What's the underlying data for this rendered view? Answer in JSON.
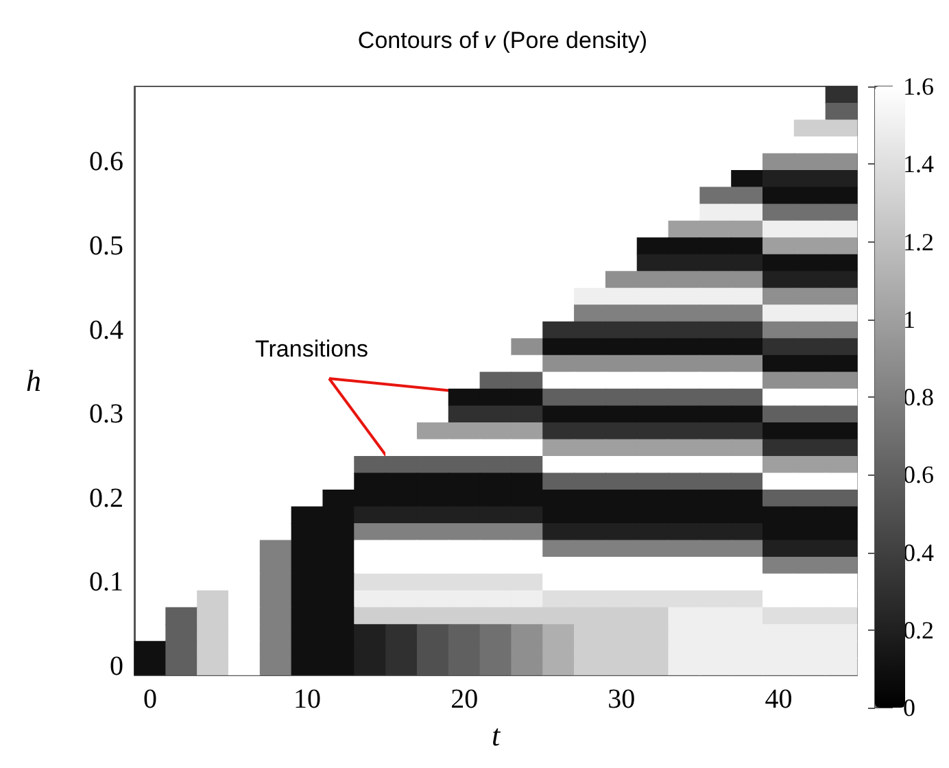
{
  "chart_data": {
    "type": "heatmap",
    "title": "Contours of 𝑣 (Pore density)",
    "xlabel": "t",
    "ylabel": "h",
    "clim": [
      0,
      1.6
    ],
    "cticks": [
      0,
      0.2,
      0.4,
      0.6,
      0.8,
      1,
      1.2,
      1.4,
      1.6
    ],
    "annotations": [
      "Transitions"
    ],
    "categories": [
      "0",
      null,
      null,
      null,
      null,
      "10",
      null,
      null,
      null,
      null,
      "20",
      null,
      null,
      null,
      null,
      "30",
      null,
      null,
      null,
      null,
      "40",
      null,
      null
    ],
    "y_categories": [
      null,
      null,
      null,
      null,
      "0.6",
      null,
      null,
      null,
      null,
      "0.5",
      null,
      null,
      null,
      null,
      "0.4",
      null,
      null,
      null,
      null,
      "0.3",
      null,
      null,
      null,
      null,
      "0.2",
      null,
      null,
      null,
      null,
      "0.1",
      null,
      null,
      null,
      null,
      "0"
    ],
    "cells": [
      [
        null,
        null,
        null,
        null,
        null,
        null,
        null,
        null,
        null,
        null,
        null,
        null,
        null,
        null,
        null,
        null,
        null,
        null,
        null,
        null,
        null,
        null,
        0.3
      ],
      [
        null,
        null,
        null,
        null,
        null,
        null,
        null,
        null,
        null,
        null,
        null,
        null,
        null,
        null,
        null,
        null,
        null,
        null,
        null,
        null,
        null,
        null,
        0.6
      ],
      [
        null,
        null,
        null,
        null,
        null,
        null,
        null,
        null,
        null,
        null,
        null,
        null,
        null,
        null,
        null,
        null,
        null,
        null,
        null,
        null,
        null,
        1.3,
        1.3
      ],
      [
        null,
        null,
        null,
        null,
        null,
        null,
        null,
        null,
        null,
        null,
        null,
        null,
        null,
        null,
        null,
        null,
        null,
        null,
        null,
        null,
        1.6,
        1.6,
        1.6
      ],
      [
        null,
        null,
        null,
        null,
        null,
        null,
        null,
        null,
        null,
        null,
        null,
        null,
        null,
        null,
        null,
        null,
        null,
        null,
        null,
        null,
        0.9,
        0.9,
        0.9
      ],
      [
        null,
        null,
        null,
        null,
        null,
        null,
        null,
        null,
        null,
        null,
        null,
        null,
        null,
        null,
        null,
        null,
        null,
        null,
        null,
        0.1,
        0.2,
        0.2,
        0.2
      ],
      [
        null,
        null,
        null,
        null,
        null,
        null,
        null,
        null,
        null,
        null,
        null,
        null,
        null,
        null,
        null,
        null,
        null,
        null,
        0.7,
        0.7,
        0.1,
        0.1,
        0.1
      ],
      [
        null,
        null,
        null,
        null,
        null,
        null,
        null,
        null,
        null,
        null,
        null,
        null,
        null,
        null,
        null,
        null,
        null,
        null,
        1.5,
        1.5,
        0.7,
        0.7,
        0.7
      ],
      [
        null,
        null,
        null,
        null,
        null,
        null,
        null,
        null,
        null,
        null,
        null,
        null,
        null,
        null,
        null,
        null,
        null,
        1.0,
        1.0,
        1.0,
        1.5,
        1.5,
        1.5
      ],
      [
        null,
        null,
        null,
        null,
        null,
        null,
        null,
        null,
        null,
        null,
        null,
        null,
        null,
        null,
        null,
        null,
        0.1,
        0.1,
        0.1,
        0.1,
        1.0,
        1.0,
        1.0
      ],
      [
        null,
        null,
        null,
        null,
        null,
        null,
        null,
        null,
        null,
        null,
        null,
        null,
        null,
        null,
        null,
        null,
        0.2,
        0.2,
        0.2,
        0.2,
        0.1,
        0.1,
        0.1
      ],
      [
        null,
        null,
        null,
        null,
        null,
        null,
        null,
        null,
        null,
        null,
        null,
        null,
        null,
        null,
        null,
        0.9,
        0.9,
        0.9,
        0.9,
        0.9,
        0.2,
        0.2,
        0.2
      ],
      [
        null,
        null,
        null,
        null,
        null,
        null,
        null,
        null,
        null,
        null,
        null,
        null,
        null,
        null,
        1.5,
        1.5,
        1.5,
        1.5,
        1.5,
        1.5,
        0.9,
        0.9,
        0.9
      ],
      [
        null,
        null,
        null,
        null,
        null,
        null,
        null,
        null,
        null,
        null,
        null,
        null,
        null,
        null,
        0.8,
        0.8,
        0.8,
        0.8,
        0.8,
        0.8,
        1.5,
        1.5,
        1.5
      ],
      [
        null,
        null,
        null,
        null,
        null,
        null,
        null,
        null,
        null,
        null,
        null,
        null,
        null,
        0.3,
        0.3,
        0.3,
        0.3,
        0.3,
        0.3,
        0.3,
        0.8,
        0.8,
        0.8
      ],
      [
        null,
        null,
        null,
        null,
        null,
        null,
        null,
        null,
        null,
        null,
        null,
        null,
        0.9,
        0.1,
        0.1,
        0.1,
        0.1,
        0.1,
        0.1,
        0.1,
        0.3,
        0.3,
        0.3
      ],
      [
        null,
        null,
        null,
        null,
        null,
        null,
        null,
        null,
        null,
        null,
        null,
        null,
        1.6,
        0.9,
        0.9,
        0.9,
        0.9,
        0.9,
        0.9,
        0.9,
        0.1,
        0.1,
        0.1
      ],
      [
        null,
        null,
        null,
        null,
        null,
        null,
        null,
        null,
        null,
        null,
        null,
        0.6,
        0.6,
        1.6,
        1.6,
        1.6,
        1.6,
        1.6,
        1.6,
        1.6,
        0.9,
        0.9,
        0.9
      ],
      [
        null,
        null,
        null,
        null,
        null,
        null,
        null,
        null,
        null,
        null,
        0.1,
        0.1,
        0.1,
        0.6,
        0.6,
        0.6,
        0.6,
        0.6,
        0.6,
        0.6,
        1.6,
        1.6,
        1.6
      ],
      [
        null,
        null,
        null,
        null,
        null,
        null,
        null,
        null,
        null,
        null,
        0.3,
        0.3,
        0.3,
        0.1,
        0.1,
        0.1,
        0.1,
        0.1,
        0.1,
        0.1,
        0.6,
        0.6,
        0.6
      ],
      [
        null,
        null,
        null,
        null,
        null,
        null,
        null,
        null,
        null,
        1.0,
        1.0,
        1.0,
        1.0,
        0.3,
        0.3,
        0.3,
        0.3,
        0.3,
        0.3,
        0.3,
        0.1,
        0.1,
        0.1
      ],
      [
        null,
        null,
        null,
        null,
        null,
        null,
        null,
        null,
        1.6,
        1.6,
        1.6,
        1.6,
        1.6,
        1.0,
        1.0,
        1.0,
        1.0,
        1.0,
        1.0,
        1.0,
        0.3,
        0.3,
        0.3
      ],
      [
        null,
        null,
        null,
        null,
        null,
        null,
        null,
        0.6,
        0.6,
        0.6,
        0.6,
        0.6,
        0.6,
        1.6,
        1.6,
        1.6,
        1.6,
        1.6,
        1.6,
        1.6,
        1.0,
        1.0,
        1.0
      ],
      [
        null,
        null,
        null,
        null,
        null,
        null,
        null,
        0.1,
        0.1,
        0.1,
        0.1,
        0.1,
        0.1,
        0.6,
        0.6,
        0.6,
        0.6,
        0.6,
        0.6,
        0.6,
        1.6,
        1.6,
        1.6
      ],
      [
        null,
        null,
        null,
        null,
        null,
        null,
        0.1,
        0.1,
        0.1,
        0.1,
        0.1,
        0.1,
        0.1,
        0.1,
        0.1,
        0.1,
        0.1,
        0.1,
        0.1,
        0.1,
        0.6,
        0.6,
        0.6
      ],
      [
        null,
        null,
        null,
        null,
        null,
        0.1,
        0.1,
        0.2,
        0.2,
        0.2,
        0.2,
        0.2,
        0.2,
        0.1,
        0.1,
        0.1,
        0.1,
        0.1,
        0.1,
        0.1,
        0.1,
        0.1,
        0.1
      ],
      [
        null,
        null,
        null,
        null,
        null,
        0.1,
        0.1,
        0.8,
        0.8,
        0.8,
        0.8,
        0.8,
        0.8,
        0.2,
        0.2,
        0.2,
        0.2,
        0.2,
        0.2,
        0.2,
        0.1,
        0.1,
        0.1
      ],
      [
        null,
        null,
        null,
        null,
        0.8,
        0.1,
        0.1,
        1.6,
        1.6,
        1.6,
        1.6,
        1.6,
        1.6,
        0.8,
        0.8,
        0.8,
        0.8,
        0.8,
        0.8,
        0.8,
        0.2,
        0.2,
        0.2
      ],
      [
        null,
        null,
        null,
        1.6,
        0.8,
        0.1,
        0.1,
        1.6,
        1.6,
        1.6,
        1.6,
        1.6,
        1.6,
        1.6,
        1.6,
        1.6,
        1.6,
        1.6,
        1.6,
        1.6,
        0.8,
        0.8,
        0.8
      ],
      [
        null,
        null,
        null,
        1.6,
        0.8,
        0.1,
        0.1,
        1.4,
        1.4,
        1.4,
        1.4,
        1.4,
        1.4,
        1.6,
        1.6,
        1.6,
        1.6,
        1.6,
        1.6,
        1.6,
        1.6,
        1.6,
        1.6
      ],
      [
        null,
        null,
        1.3,
        1.6,
        0.8,
        0.1,
        0.1,
        1.5,
        1.5,
        1.5,
        1.5,
        1.5,
        1.5,
        1.4,
        1.4,
        1.4,
        1.4,
        1.4,
        1.4,
        1.4,
        1.6,
        1.6,
        1.6
      ],
      [
        null,
        0.6,
        1.3,
        1.6,
        0.8,
        0.1,
        0.1,
        1.3,
        1.3,
        1.3,
        1.3,
        1.3,
        1.3,
        1.3,
        1.3,
        1.3,
        1.3,
        1.5,
        1.5,
        1.5,
        1.4,
        1.4,
        1.4
      ],
      [
        null,
        0.6,
        1.3,
        1.6,
        0.8,
        0.1,
        0.1,
        0.2,
        0.3,
        0.5,
        0.6,
        0.7,
        0.9,
        1.1,
        1.3,
        1.3,
        1.3,
        1.5,
        1.5,
        1.5,
        1.5,
        1.5,
        1.5
      ],
      [
        0.1,
        0.6,
        1.3,
        1.6,
        0.8,
        0.1,
        0.1,
        0.2,
        0.3,
        0.5,
        0.6,
        0.7,
        0.9,
        1.1,
        1.3,
        1.3,
        1.3,
        1.5,
        1.5,
        1.5,
        1.5,
        1.5,
        1.5
      ],
      [
        0.1,
        0.6,
        1.3,
        1.6,
        0.8,
        0.1,
        0.1,
        0.2,
        0.3,
        0.5,
        0.6,
        0.7,
        0.9,
        1.1,
        1.3,
        1.3,
        1.3,
        1.5,
        1.5,
        1.5,
        1.5,
        1.5,
        1.5
      ]
    ]
  }
}
